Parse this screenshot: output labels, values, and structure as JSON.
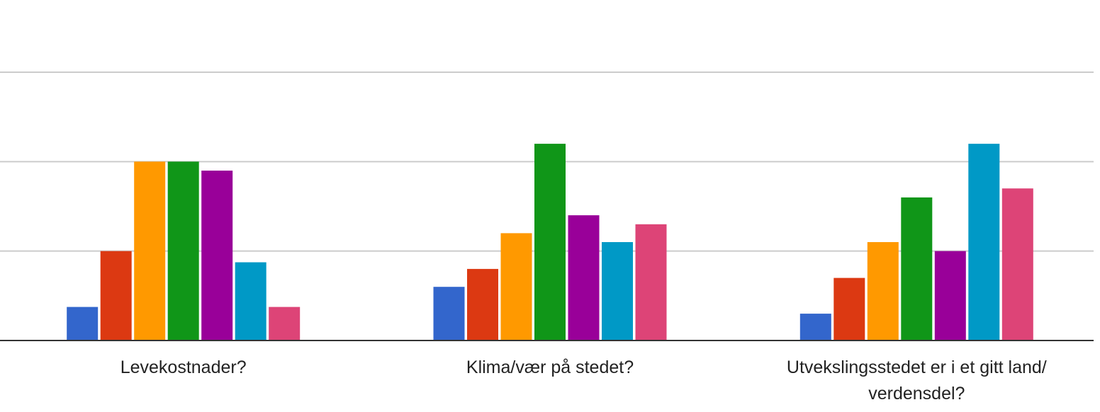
{
  "chart_data": {
    "type": "bar",
    "title": "",
    "xlabel": "",
    "ylabel": "",
    "ylim": [
      0,
      6
    ],
    "grid": true,
    "categories": [
      [
        "Levekostnader?"
      ],
      [
        "Klima/vær på stedet?"
      ],
      [
        "Utvekslingsstedet er i et gitt land/",
        "verdensdel?"
      ]
    ],
    "colors": [
      "#3366cc",
      "#dc3912",
      "#ff9900",
      "#109618",
      "#990099",
      "#0099c6",
      "#dd4477"
    ],
    "series": [
      {
        "values": [
          0.75,
          1.2,
          0.6
        ]
      },
      {
        "values": [
          2.0,
          1.6,
          1.4
        ]
      },
      {
        "values": [
          4.0,
          2.4,
          2.2
        ]
      },
      {
        "values": [
          4.0,
          4.4,
          3.2
        ]
      },
      {
        "values": [
          3.8,
          2.8,
          2.0
        ]
      },
      {
        "values": [
          1.75,
          2.2,
          4.4
        ]
      },
      {
        "values": [
          0.75,
          2.6,
          3.4
        ]
      }
    ]
  }
}
